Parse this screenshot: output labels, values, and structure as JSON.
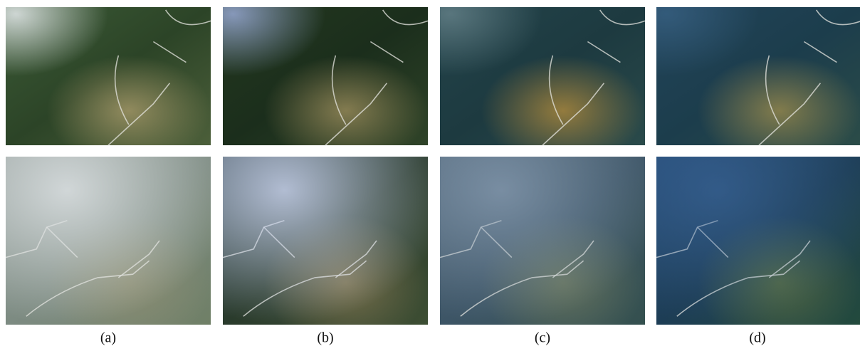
{
  "captions": [
    "(a)",
    "(b)",
    "(c)",
    "(d)"
  ]
}
